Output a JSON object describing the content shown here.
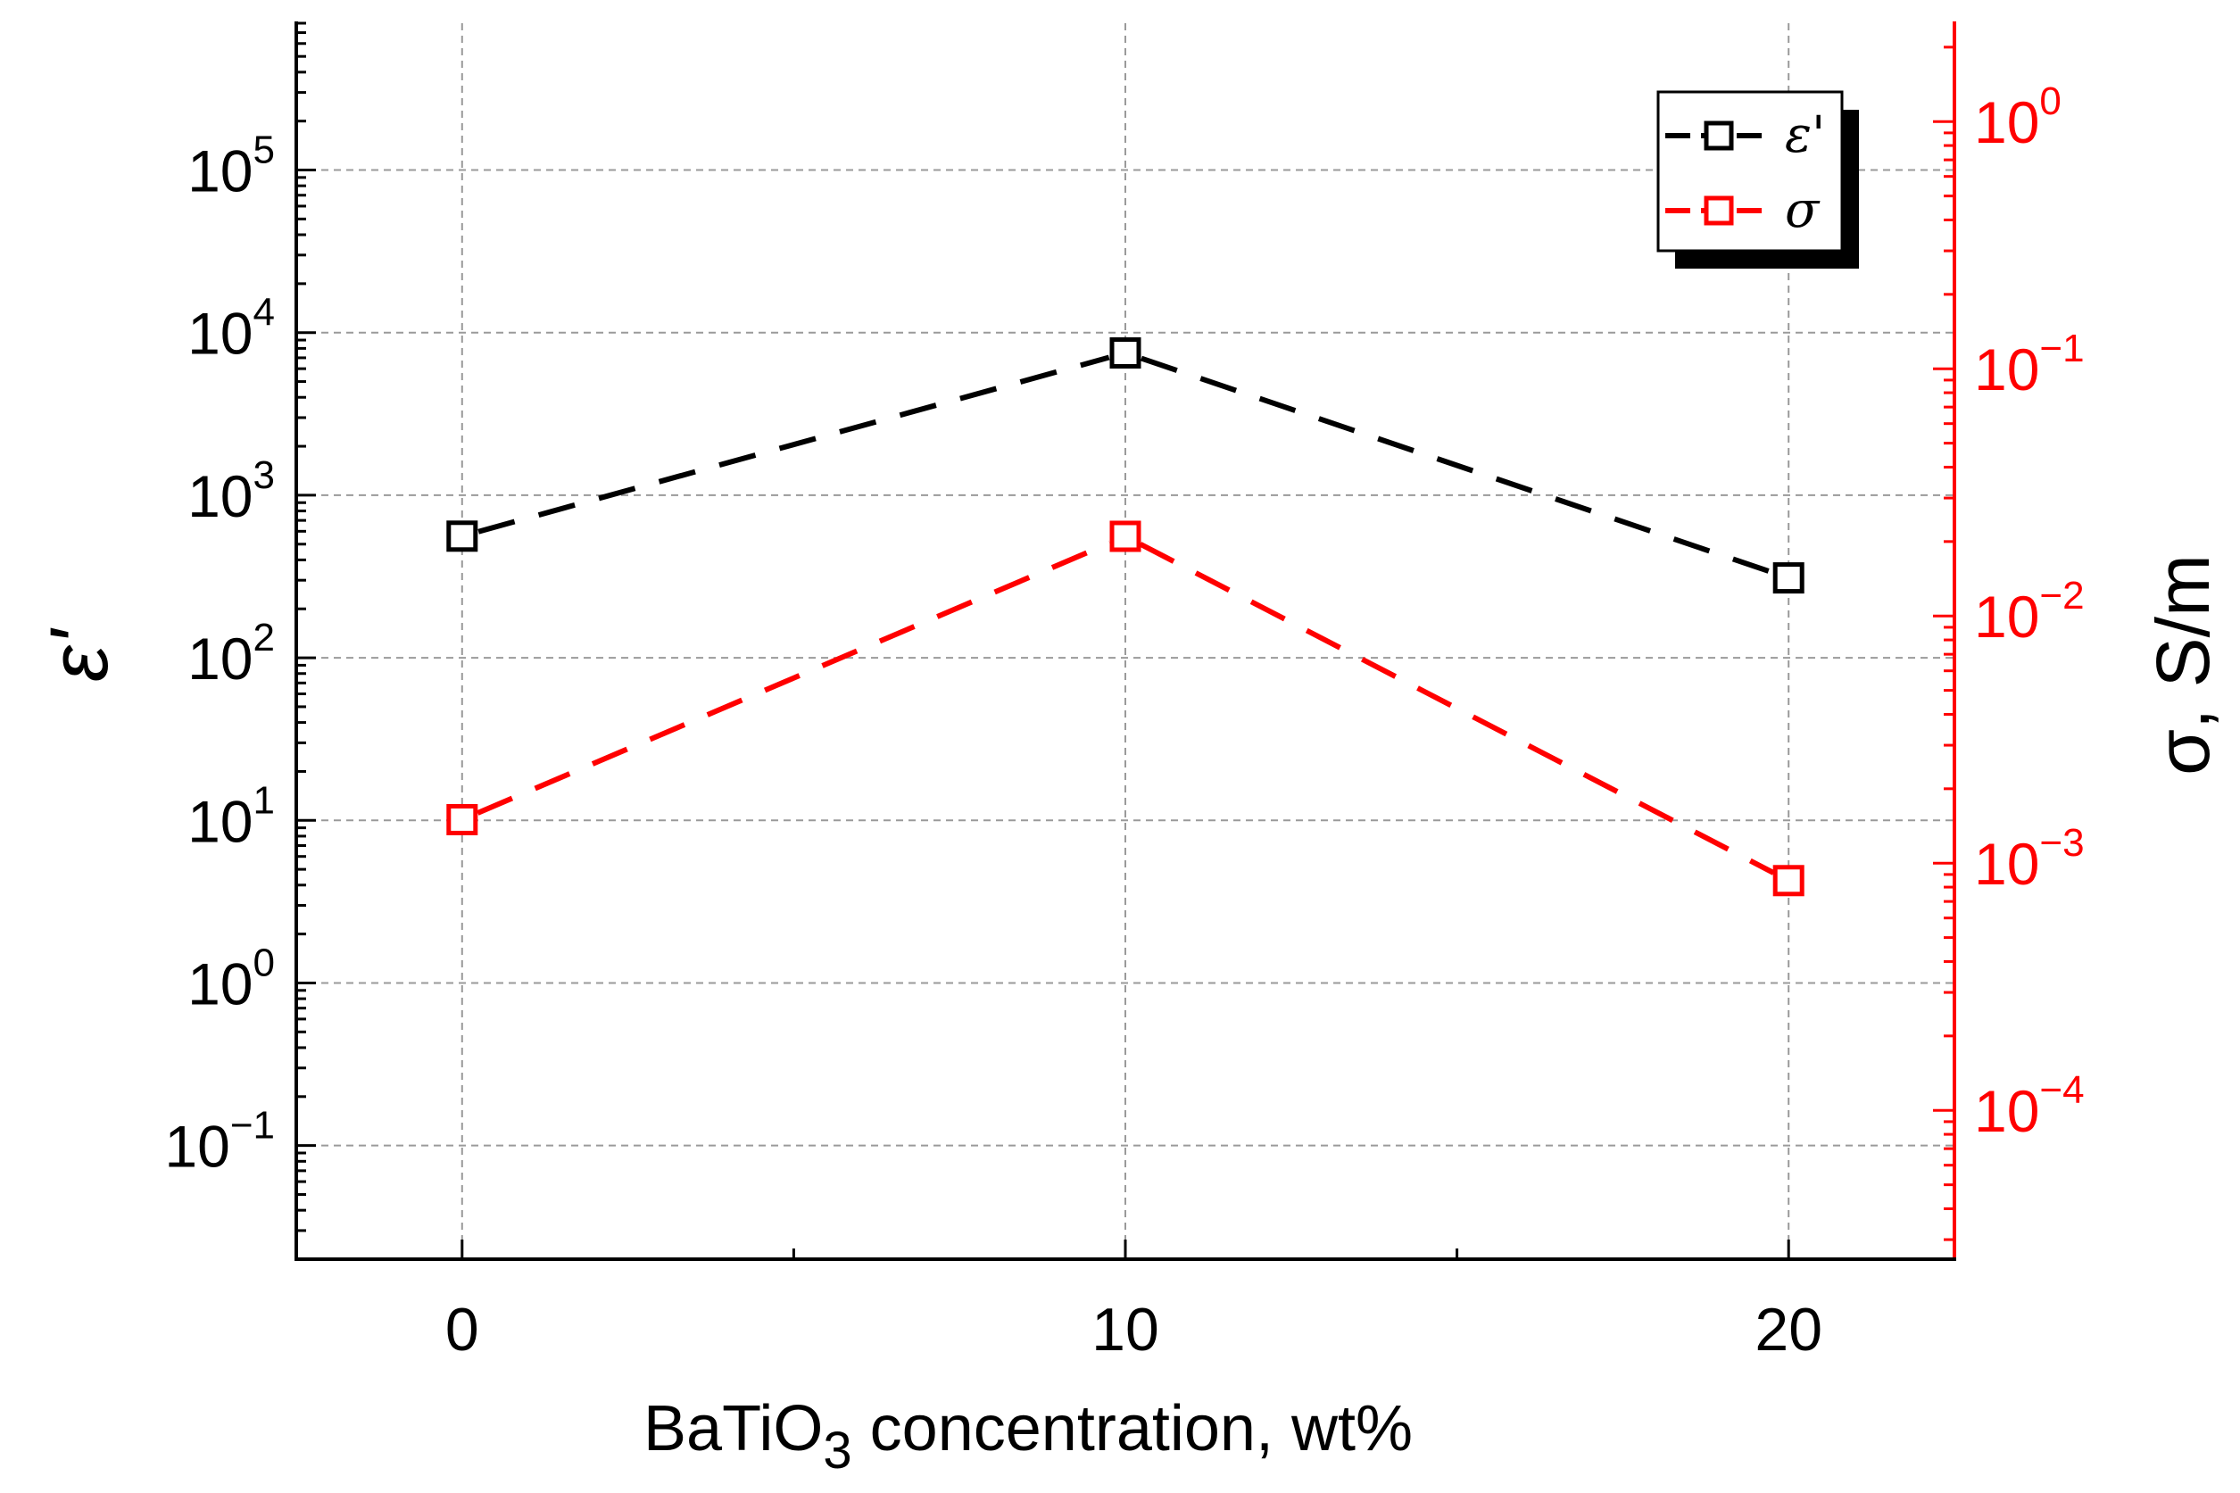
{
  "chart_data": {
    "type": "line",
    "x_axis": {
      "label_prefix": "BaTiO",
      "label_subscript": "3",
      "label_suffix": " concentration, wt%",
      "range": [
        -2.5,
        22.5
      ],
      "ticks": [
        0,
        10,
        20
      ],
      "tick_labels": [
        "0",
        "10",
        "20"
      ],
      "minor_ticks": [
        5,
        15
      ]
    },
    "y_axis_left": {
      "label": "ε'",
      "scale": "log",
      "range": [
        0.02,
        800000
      ],
      "ticks": [
        0.1,
        1,
        10,
        100,
        1000,
        10000,
        100000
      ],
      "tick_labels": [
        {
          "base": "10",
          "exp": "−1"
        },
        {
          "base": "10",
          "exp": "0"
        },
        {
          "base": "10",
          "exp": "1"
        },
        {
          "base": "10",
          "exp": "2"
        },
        {
          "base": "10",
          "exp": "3"
        },
        {
          "base": "10",
          "exp": "4"
        },
        {
          "base": "10",
          "exp": "5"
        }
      ],
      "color": "#000000"
    },
    "y_axis_right": {
      "label": "σ, S/m",
      "scale": "log",
      "range": [
        2.5e-05,
        2.5
      ],
      "ticks": [
        0.0001,
        0.001,
        0.01,
        0.1,
        1
      ],
      "tick_labels": [
        {
          "base": "10",
          "exp": "−4"
        },
        {
          "base": "10",
          "exp": "−3"
        },
        {
          "base": "10",
          "exp": "−2"
        },
        {
          "base": "10",
          "exp": "−1"
        },
        {
          "base": "10",
          "exp": "0"
        }
      ],
      "color": "#ff0000"
    },
    "grid": true,
    "series": [
      {
        "name": "ε'",
        "axis": "left",
        "color": "#000000",
        "marker": "open-square",
        "line": "dashed",
        "x": [
          0,
          10,
          20
        ],
        "y": [
          560,
          7500,
          310
        ]
      },
      {
        "name": "σ",
        "axis": "right",
        "color": "#ff0000",
        "marker": "open-square",
        "line": "dashed",
        "x": [
          0,
          10,
          20
        ],
        "y": [
          0.0015,
          0.021,
          0.00085
        ]
      }
    ],
    "legend": {
      "position": "top-right",
      "entries": [
        "ε'",
        "σ"
      ]
    }
  }
}
